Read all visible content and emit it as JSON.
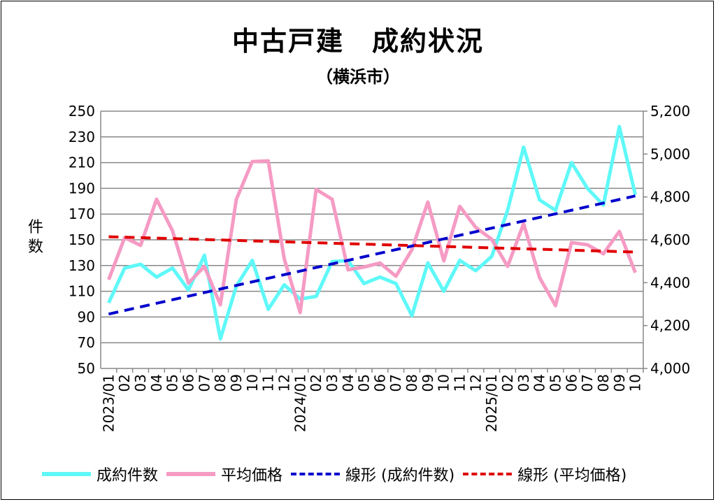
{
  "chart_data": {
    "type": "line",
    "title": "中古戸建　成約状況",
    "subtitle": "（横浜市）",
    "ylabel": "件数",
    "ylim": [
      50,
      250
    ],
    "yticks": [
      "50",
      "70",
      "90",
      "110",
      "130",
      "150",
      "170",
      "190",
      "210",
      "230",
      "250"
    ],
    "y2lim": [
      4000,
      5200
    ],
    "y2ticks": [
      "4,000",
      "4,200",
      "4,400",
      "4,600",
      "4,800",
      "5,000",
      "5,200"
    ],
    "categories": [
      "2023/01",
      "02",
      "03",
      "04",
      "05",
      "06",
      "07",
      "08",
      "09",
      "10",
      "11",
      "12",
      "2024/01",
      "02",
      "03",
      "04",
      "05",
      "06",
      "07",
      "08",
      "09",
      "10",
      "11",
      "12",
      "2025/01",
      "02",
      "03",
      "04",
      "05",
      "06",
      "07",
      "08",
      "09",
      "10"
    ],
    "series": [
      {
        "name": "成約件数",
        "axis": "left",
        "color": "#5ff8f8",
        "values": [
          101,
          128,
          131,
          121,
          128,
          111,
          138,
          73,
          114,
          134,
          96,
          115,
          104,
          106,
          133,
          134,
          116,
          121,
          116,
          91,
          132,
          110,
          134,
          126,
          137,
          173,
          222,
          181,
          173,
          210,
          190,
          177,
          238,
          185
        ]
      },
      {
        "name": "平均価格",
        "axis": "right",
        "color": "#f59bc4",
        "values": [
          4414,
          4610,
          4574,
          4789,
          4642,
          4398,
          4476,
          4297,
          4789,
          4965,
          4968,
          4512,
          4261,
          4835,
          4789,
          4460,
          4473,
          4492,
          4430,
          4554,
          4776,
          4502,
          4756,
          4658,
          4603,
          4476,
          4675,
          4424,
          4293,
          4587,
          4577,
          4535,
          4639,
          4447
        ]
      },
      {
        "name": "線形 (成約件数)",
        "type": "trend",
        "of": 0,
        "color": "#0000cc"
      },
      {
        "name": "線形 (平均価格)",
        "type": "trend",
        "of": 1,
        "color": "#e00000"
      }
    ],
    "grid": true,
    "legend": "bottom"
  }
}
